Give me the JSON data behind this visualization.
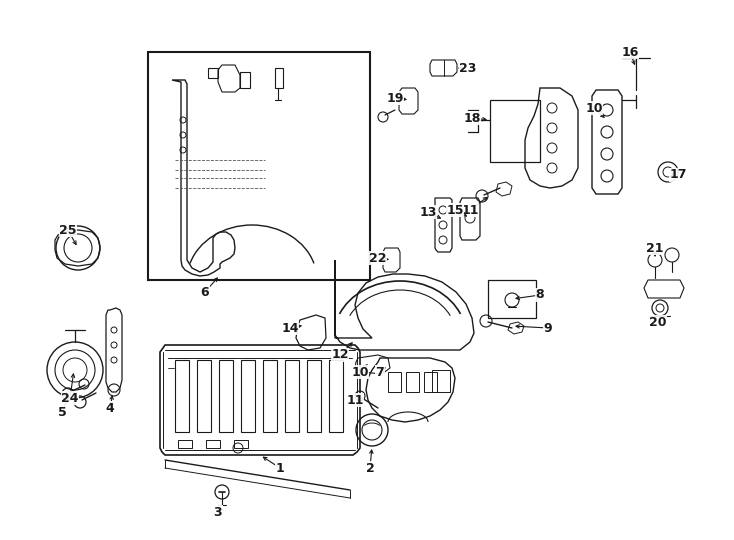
{
  "background_color": "#ffffff",
  "line_color": "#1a1a1a",
  "lw": 1.0,
  "fig_w": 7.34,
  "fig_h": 5.4,
  "dpi": 100
}
